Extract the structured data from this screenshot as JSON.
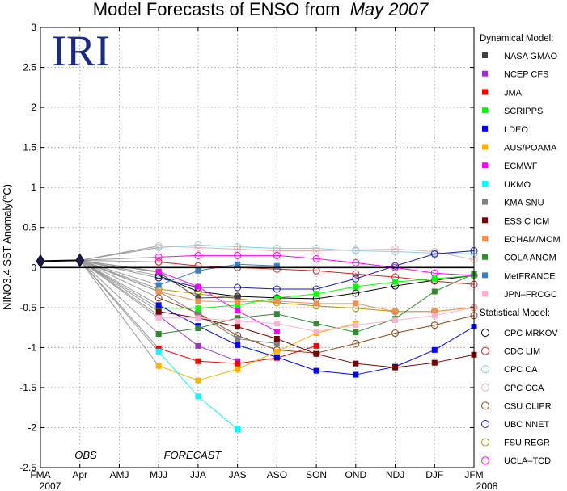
{
  "chart_data": {
    "type": "line",
    "title": "Model Forecasts of ENSO from",
    "title_emphasis": "May 2007",
    "ylabel": "NINO3.4 SST Anomaly(°C)",
    "logo_text": "IRI",
    "annotations": {
      "obs": "OBS",
      "forecast": "FORECAST"
    },
    "years": {
      "start": "2007",
      "end": "2008"
    },
    "categories": [
      "FMA",
      "Apr",
      "AMJ",
      "MJJ",
      "JJA",
      "JAS",
      "ASO",
      "SON",
      "OND",
      "NDJ",
      "DJF",
      "JFM"
    ],
    "ylim": [
      -2.5,
      3
    ],
    "yticks": [
      "3",
      "2.5",
      "2",
      "1.5",
      "1",
      "0.5",
      "0",
      "-0.5",
      "-1",
      "-1.5",
      "-2",
      "-2.5"
    ],
    "grid": true,
    "legend_position": "right",
    "observed": {
      "x": [
        0,
        1
      ],
      "y": [
        0.08,
        0.09
      ]
    },
    "dynamical_heading": "Dynamical Model:",
    "statistical_heading": "Statistical Model:",
    "dynamical": [
      {
        "name": "NASA GMAO",
        "color": "#404040",
        "values": [
          -0.06,
          -0.38,
          -0.37,
          null,
          null,
          null,
          null,
          null,
          null
        ]
      },
      {
        "name": "NCEP CFS",
        "color": "#9a33cc",
        "values": [
          -0.6,
          -0.98,
          -1.17,
          null,
          null,
          null,
          null,
          null,
          null
        ]
      },
      {
        "name": "JMA",
        "color": "#ff0000",
        "values": [
          -1.01,
          -1.17,
          -1.2,
          -1.13,
          -0.98,
          null,
          null,
          null,
          null
        ]
      },
      {
        "name": "SCRIPPS",
        "color": "#00ff00",
        "values": [
          -0.51,
          -0.51,
          -0.47,
          -0.38,
          -0.33,
          -0.24,
          -0.18,
          -0.14,
          -0.1
        ]
      },
      {
        "name": "LDEO",
        "color": "#0000ff",
        "values": [
          -0.47,
          -0.73,
          -0.97,
          -1.12,
          -1.29,
          -1.34,
          -1.24,
          -1.03,
          -0.74
        ]
      },
      {
        "name": "AUS/POAMA",
        "color": "#ffb300",
        "values": [
          -1.23,
          -1.41,
          -1.27,
          -1.05,
          -0.82,
          -0.7,
          null,
          null,
          null
        ]
      },
      {
        "name": "ECMWF",
        "color": "#ff00ff",
        "values": [
          -0.05,
          -0.24,
          -0.54,
          -0.8,
          null,
          null,
          null,
          null,
          null
        ]
      },
      {
        "name": "UKMO",
        "color": "#00ffff",
        "values": [
          -1.05,
          -1.61,
          -2.02,
          null,
          null,
          null,
          null,
          null,
          null
        ]
      },
      {
        "name": "KMA SNU",
        "color": "#808080",
        "values": [
          -0.3,
          -0.58,
          -0.89,
          -0.95,
          null,
          null,
          null,
          null,
          null
        ]
      },
      {
        "name": "ESSIC ICM",
        "color": "#7a0000",
        "values": [
          -0.55,
          -0.63,
          -0.74,
          -0.89,
          -1.08,
          -1.2,
          -1.25,
          -1.19,
          -1.09
        ]
      },
      {
        "name": "ECHAM/MOM",
        "color": "#f09050",
        "values": [
          -0.3,
          -0.42,
          -0.43,
          -0.42,
          -0.45,
          -0.45,
          -0.55,
          -0.55,
          -0.5
        ]
      },
      {
        "name": "COLA ANOM",
        "color": "#2e8b2e",
        "values": [
          -0.83,
          -0.76,
          -0.63,
          -0.58,
          -0.7,
          -0.81,
          -0.64,
          -0.3,
          -0.08
        ]
      },
      {
        "name": "MetFRANCE",
        "color": "#3a7fbf",
        "values": [
          -0.22,
          -0.04,
          0.04,
          0.02,
          null,
          null,
          null,
          null,
          null
        ]
      },
      {
        "name": "JPN–FRCGC",
        "color": "#ffb0d0",
        "values": [
          -0.63,
          -0.63,
          -0.67,
          -0.7,
          -0.8,
          -0.72,
          -0.66,
          -0.6,
          -0.5
        ]
      }
    ],
    "statistical": [
      {
        "name": "CPC MRKOV",
        "color": "#000000",
        "values": [
          -0.1,
          -0.3,
          -0.36,
          -0.38,
          -0.39,
          -0.32,
          -0.23,
          -0.16,
          -0.1
        ]
      },
      {
        "name": "CDC LIM",
        "color": "#cc2222",
        "values": [
          0.07,
          0.02,
          0.0,
          -0.02,
          -0.04,
          -0.08,
          -0.12,
          -0.17,
          -0.21
        ]
      },
      {
        "name": "CPC CA",
        "color": "#80d0e0",
        "values": [
          0.25,
          0.28,
          0.26,
          0.24,
          0.24,
          0.21,
          0.2,
          0.18,
          0.17
        ]
      },
      {
        "name": "CPC CCA",
        "color": "#e0b0b0",
        "values": [
          0.27,
          0.25,
          0.23,
          0.21,
          0.21,
          0.22,
          0.23,
          0.2,
          0.1
        ]
      },
      {
        "name": "CSU CLIPR",
        "color": "#8b4513",
        "values": [
          -0.38,
          -0.57,
          -0.85,
          -1.03,
          -1.07,
          -0.95,
          -0.82,
          -0.72,
          -0.6
        ]
      },
      {
        "name": "UBC NNET",
        "color": "#1a1aa8",
        "values": [
          -0.13,
          -0.25,
          -0.25,
          -0.27,
          -0.27,
          -0.14,
          0.02,
          0.17,
          0.21
        ]
      },
      {
        "name": "FSU REGR",
        "color": "#b09a00",
        "values": [
          -0.27,
          -0.33,
          -0.39,
          -0.44,
          -0.48,
          -0.51,
          -0.55,
          -0.55,
          -0.5
        ]
      },
      {
        "name": "UCLA–TCD",
        "color": "#ff00ff",
        "values": [
          0.13,
          0.15,
          0.15,
          0.15,
          0.11,
          0.06,
          0.0,
          -0.07,
          -0.1
        ]
      }
    ]
  }
}
